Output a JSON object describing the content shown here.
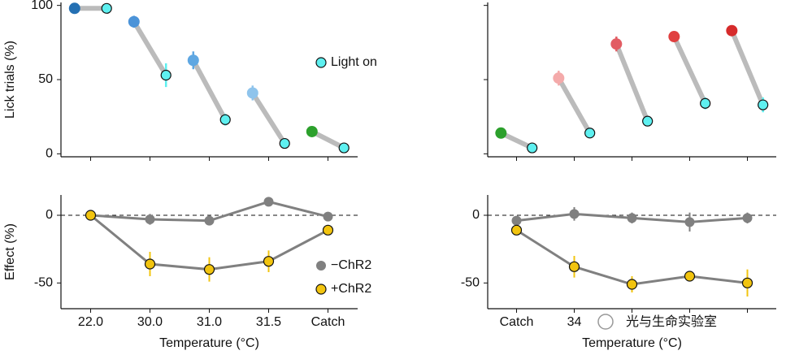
{
  "chart_data": [
    {
      "type": "paired-dot",
      "ylabel": "Lick trials (%)",
      "ylim": [
        -2,
        102
      ],
      "yticks": [
        0,
        50,
        100
      ],
      "show_tick_labels": true,
      "series": [
        {
          "colors": [
            "#2470b3",
            "#4b93d8",
            "#5fa7e2",
            "#8fc4ec",
            "#2ca02c"
          ],
          "values": [
            98,
            89,
            63,
            41,
            15
          ],
          "errors": [
            0,
            4,
            6,
            5,
            0
          ]
        },
        {
          "name": "Light on",
          "color": "#5ef0f0",
          "values": [
            98,
            53,
            23,
            7,
            4
          ],
          "errors": [
            0,
            8,
            4,
            0,
            0
          ]
        }
      ],
      "legend": "right"
    },
    {
      "type": "paired-dot",
      "ylim": [
        -2,
        102
      ],
      "yticks": [
        0,
        50,
        100
      ],
      "show_tick_labels": false,
      "series": [
        {
          "colors": [
            "#2ca02c",
            "#f4aaaa",
            "#e25c63",
            "#e04040",
            "#d62b2b"
          ],
          "values": [
            14,
            51,
            74,
            79,
            83
          ],
          "errors": [
            0,
            5,
            5,
            3,
            3
          ]
        },
        {
          "color": "#5ef0f0",
          "values": [
            4,
            14,
            22,
            34,
            33
          ],
          "errors": [
            0,
            0,
            0,
            4,
            5
          ]
        }
      ]
    },
    {
      "type": "line",
      "ylabel": "Effect (%)",
      "xlabel": "Temperature (°C)",
      "categories": [
        "22.0",
        "30.0",
        "31.0",
        "31.5",
        "Catch"
      ],
      "ylim": [
        -69,
        15
      ],
      "yticks": [
        -50,
        0
      ],
      "show_tick_labels": true,
      "zero_line": true,
      "legend": "right",
      "series": [
        {
          "name": "−ChR2",
          "color": "#808080",
          "values": [
            0,
            -3,
            -4,
            10,
            -1
          ],
          "errors": [
            0,
            4,
            2,
            0,
            0
          ]
        },
        {
          "name": "+ChR2",
          "color": "#f2c40f",
          "values": [
            0,
            -36,
            -40,
            -34,
            -11
          ],
          "errors": [
            0,
            9,
            9,
            8,
            3
          ]
        }
      ]
    },
    {
      "type": "line",
      "xlabel": "Temperature (°C)",
      "categories": [
        "Catch",
        "34",
        null,
        null,
        null
      ],
      "ylim": [
        -69,
        15
      ],
      "yticks": [
        -50,
        0
      ],
      "show_tick_labels": true,
      "zero_line": true,
      "series": [
        {
          "color": "#808080",
          "values": [
            -4,
            1,
            -2,
            -5,
            -2
          ],
          "errors": [
            2,
            5,
            4,
            7,
            4
          ]
        },
        {
          "color": "#f2c40f",
          "values": [
            -11,
            -38,
            -51,
            -45,
            -50
          ],
          "errors": [
            2,
            8,
            6,
            3,
            10
          ]
        }
      ]
    }
  ],
  "watermark": "光与生命实验室"
}
